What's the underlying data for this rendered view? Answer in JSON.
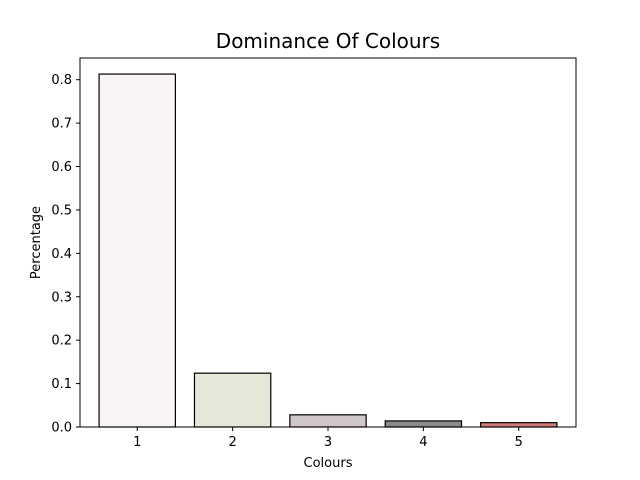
{
  "chart_data": {
    "type": "bar",
    "title": "Dominance Of Colours",
    "xlabel": "Colours",
    "ylabel": "Percentage",
    "categories": [
      "1",
      "2",
      "3",
      "4",
      "5"
    ],
    "values": [
      0.813,
      0.124,
      0.028,
      0.014,
      0.01
    ],
    "colors": [
      "#f9f5f4",
      "#e4e8d8",
      "#d0c5ca",
      "#8a8a8a",
      "#d37b7b"
    ],
    "edge_color": "#000000",
    "ylim": [
      0,
      0.85
    ],
    "yticks": [
      0.0,
      0.1,
      0.2,
      0.3,
      0.4,
      0.5,
      0.6,
      0.7,
      0.8
    ],
    "ytick_labels": [
      "0.0",
      "0.1",
      "0.2",
      "0.3",
      "0.4",
      "0.5",
      "0.6",
      "0.7",
      "0.8"
    ],
    "grid": false,
    "legend": "none"
  }
}
